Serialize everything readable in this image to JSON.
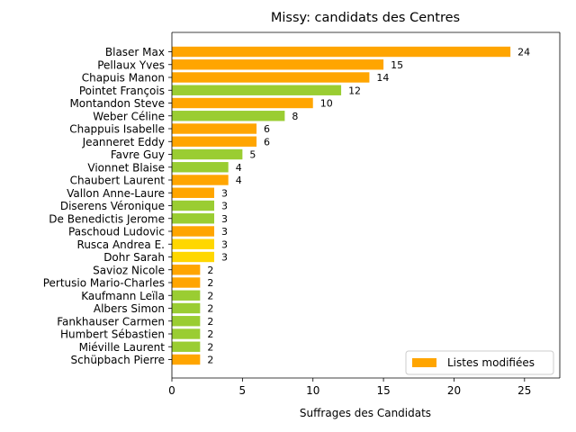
{
  "chart_data": {
    "type": "bar",
    "orientation": "horizontal",
    "title": "Missy: candidats des Centres",
    "xlabel": "Suffrages des Candidats",
    "ylabel": "",
    "xlim": [
      0,
      27.5
    ],
    "x_ticks": [
      0,
      5,
      10,
      15,
      20,
      25
    ],
    "grid": false,
    "legend_position": "bottom-right",
    "legend": [
      {
        "label": "Listes modifiées",
        "color": "#ffa500"
      }
    ],
    "categories": [
      "Blaser Max",
      "Pellaux Yves",
      "Chapuis Manon",
      "Pointet François",
      "Montandon Steve",
      "Weber Céline",
      "Chappuis Isabelle",
      "Jeanneret Eddy",
      "Favre Guy",
      "Vionnet Blaise",
      "Chaubert Laurent",
      "Vallon Anne-Laure",
      "Diserens Véronique",
      "De Benedictis Jerome",
      "Paschoud Ludovic",
      "Rusca Andrea E.",
      "Dohr Sarah",
      "Savioz Nicole",
      "Pertusio Mario-Charles",
      "Kaufmann Leïla",
      "Albers Simon",
      "Fankhauser Carmen",
      "Humbert Sébastien",
      "Miéville Laurent",
      "Schüpbach Pierre"
    ],
    "values": [
      24,
      15,
      14,
      12,
      10,
      8,
      6,
      6,
      5,
      4,
      4,
      3,
      3,
      3,
      3,
      3,
      3,
      2,
      2,
      2,
      2,
      2,
      2,
      2,
      2
    ],
    "bar_colors": [
      "#ffa500",
      "#ffa500",
      "#ffa500",
      "#9acd32",
      "#ffa500",
      "#9acd32",
      "#ffa500",
      "#ffa500",
      "#9acd32",
      "#9acd32",
      "#ffa500",
      "#ffa500",
      "#9acd32",
      "#9acd32",
      "#ffa500",
      "#ffd700",
      "#ffd700",
      "#ffa500",
      "#ffa500",
      "#9acd32",
      "#9acd32",
      "#9acd32",
      "#9acd32",
      "#9acd32",
      "#ffa500"
    ]
  }
}
